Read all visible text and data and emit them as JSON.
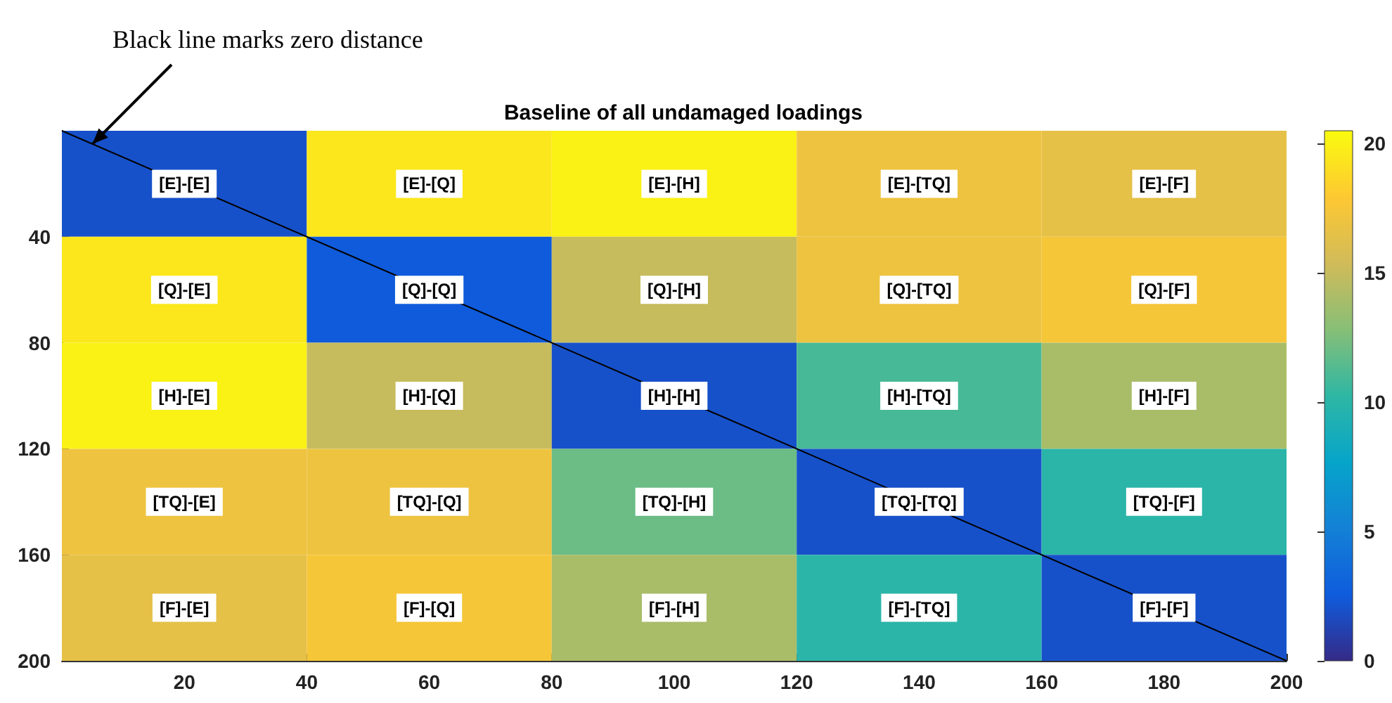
{
  "chart_data": {
    "type": "heatmap",
    "title": "Baseline of all undamaged loadings",
    "x": [
      20,
      60,
      100,
      140,
      180
    ],
    "y": [
      20,
      60,
      100,
      140,
      180
    ],
    "cells": [
      [
        2,
        19.5,
        20,
        17,
        16.5
      ],
      [
        19.5,
        2.5,
        15,
        17,
        17.5
      ],
      [
        20,
        15,
        2,
        11,
        14
      ],
      [
        17,
        17,
        12,
        2,
        10
      ],
      [
        16.5,
        17.5,
        14,
        10,
        2
      ]
    ],
    "cell_labels": [
      [
        "[E]-[E]",
        "[E]-[Q]",
        "[E]-[H]",
        "[E]-[TQ]",
        "[E]-[F]"
      ],
      [
        "[Q]-[E]",
        "[Q]-[Q]",
        "[Q]-[H]",
        "[Q]-[TQ]",
        "[Q]-[F]"
      ],
      [
        "[H]-[E]",
        "[H]-[Q]",
        "[H]-[H]",
        "[H]-[TQ]",
        "[H]-[F]"
      ],
      [
        "[TQ]-[E]",
        "[TQ]-[Q]",
        "[TQ]-[H]",
        "[TQ]-[TQ]",
        "[TQ]-[F]"
      ],
      [
        "[F]-[E]",
        "[F]-[Q]",
        "[F]-[H]",
        "[F]-[TQ]",
        "[F]-[F]"
      ]
    ],
    "series": [
      {
        "type": "line",
        "color": "#000000",
        "x": [
          0,
          200
        ],
        "values": [
          0,
          200
        ]
      }
    ],
    "xlim": [
      0,
      200
    ],
    "xticks": [
      20,
      40,
      60,
      80,
      100,
      120,
      140,
      160,
      180,
      200
    ],
    "ylim": [
      200,
      0
    ],
    "yticks": [
      40,
      80,
      120,
      160,
      200
    ],
    "clim": [
      0,
      20.5
    ],
    "cticks": [
      0,
      5,
      10,
      15,
      20
    ],
    "annotations": [
      {
        "text": "Black line marks zero distance",
        "x": 5,
        "y": 5
      }
    ]
  }
}
